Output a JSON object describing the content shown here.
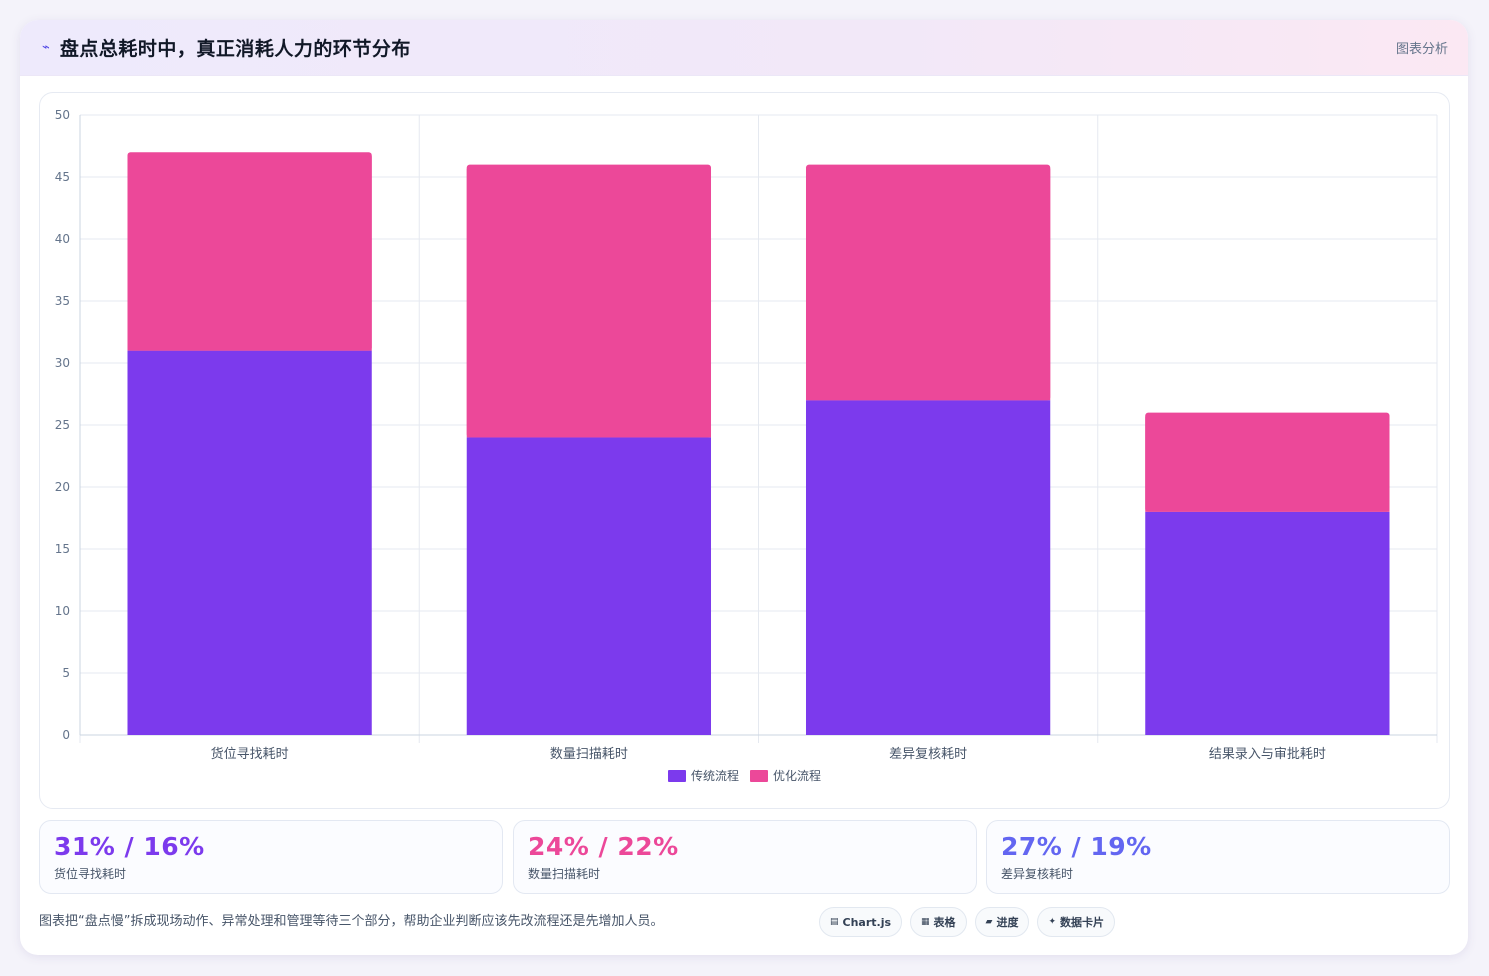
{
  "header": {
    "icon": "trend-icon",
    "title": "盘点总耗时中，真正消耗人力的环节分布",
    "tag": "图表分析"
  },
  "chart_data": {
    "type": "bar",
    "stacked": true,
    "categories": [
      "货位寻找耗时",
      "数量扫描耗时",
      "差异复核耗时",
      "结果录入与审批耗时"
    ],
    "series": [
      {
        "name": "传统流程",
        "color": "#7c3aed",
        "values": [
          31,
          24,
          27,
          18
        ]
      },
      {
        "name": "优化流程",
        "color": "#ec4899",
        "values": [
          16,
          22,
          19,
          8
        ]
      }
    ],
    "ylim": [
      0,
      50
    ],
    "yticks": [
      0,
      5,
      10,
      15,
      20,
      25,
      30,
      35,
      40,
      45,
      50
    ],
    "grid": true,
    "legend": "bottom-center"
  },
  "stats": [
    {
      "value": "31% / 16%",
      "label": "货位寻找耗时",
      "color": "#7c3aed"
    },
    {
      "value": "24% / 22%",
      "label": "数量扫描耗时",
      "color": "#ec4899"
    },
    {
      "value": "27% / 19%",
      "label": "差异复核耗时",
      "color": "#6366f1"
    }
  ],
  "footer": {
    "note": "图表把“盘点慢”拆成现场动作、异常处理和管理等待三个部分，帮助企业判断应该先改流程还是先增加人员。"
  },
  "chips": [
    {
      "icon": "chart-icon",
      "glyph": "▤",
      "label": "Chart.js"
    },
    {
      "icon": "table-icon",
      "glyph": "▦",
      "label": "表格"
    },
    {
      "icon": "progress-icon",
      "glyph": "▰",
      "label": "进度"
    },
    {
      "icon": "sparkle-icon",
      "glyph": "✦",
      "label": "数据卡片"
    }
  ]
}
